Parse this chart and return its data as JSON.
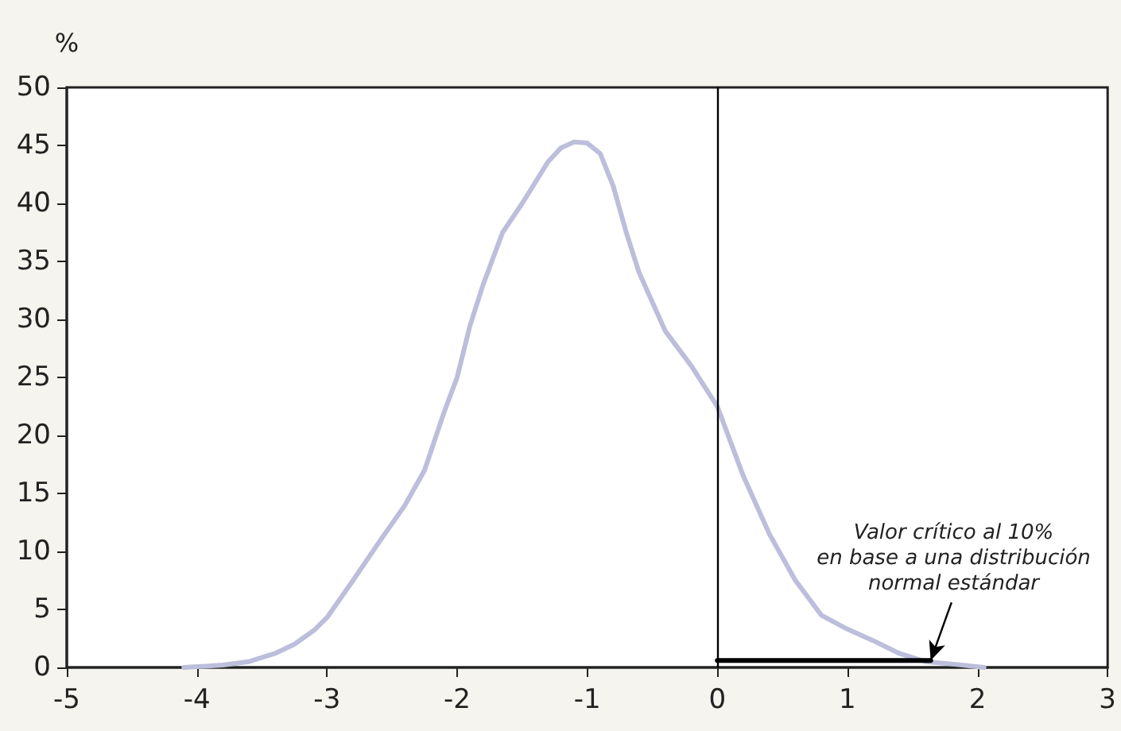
{
  "chart_data": {
    "type": "line",
    "ylabel": "%",
    "xlim": [
      -5,
      3
    ],
    "xticks": [
      -5,
      -4,
      -3,
      -2,
      -1,
      0,
      1,
      2,
      3
    ],
    "ylim": [
      0,
      50
    ],
    "yticks": [
      0,
      5,
      10,
      15,
      20,
      25,
      30,
      35,
      40,
      45,
      50
    ],
    "grid": false,
    "marker": "none",
    "line_style": "solid",
    "series": [
      {
        "color": "#bcbedb",
        "x": [
          -4.1,
          -3.8,
          -3.6,
          -3.4,
          -3.25,
          -3.1,
          -3.0,
          -2.8,
          -2.6,
          -2.4,
          -2.25,
          -2.1,
          -2.0,
          -1.9,
          -1.8,
          -1.65,
          -1.5,
          -1.4,
          -1.3,
          -1.2,
          -1.1,
          -1.0,
          -0.9,
          -0.8,
          -0.7,
          -0.6,
          -0.4,
          -0.2,
          0,
          0.2,
          0.4,
          0.6,
          0.8,
          1.0,
          1.2,
          1.4,
          1.6,
          1.8,
          2.05
        ],
        "values": [
          0,
          0.2,
          0.5,
          1.2,
          2.0,
          3.2,
          4.3,
          7.5,
          10.8,
          14,
          17,
          22,
          25,
          29.5,
          33,
          37.5,
          40,
          41.8,
          43.6,
          44.8,
          45.3,
          45.2,
          44.3,
          41.5,
          37.5,
          34,
          29,
          26,
          22.5,
          16.5,
          11.5,
          7.5,
          4.5,
          3.3,
          2.3,
          1.2,
          0.5,
          0.3,
          0
        ]
      },
      {
        "color": "#000000",
        "x": [
          0,
          1.64
        ],
        "values": [
          0.6,
          0.6
        ]
      }
    ],
    "ref_lines": [
      {
        "axis": "x",
        "value": 0,
        "color": "#000000"
      }
    ],
    "annotations": [
      {
        "text": "Valor crítico al 10%\nen base a una distribución\nnormal estándar",
        "x": 1.64,
        "y": 0.6
      }
    ]
  }
}
